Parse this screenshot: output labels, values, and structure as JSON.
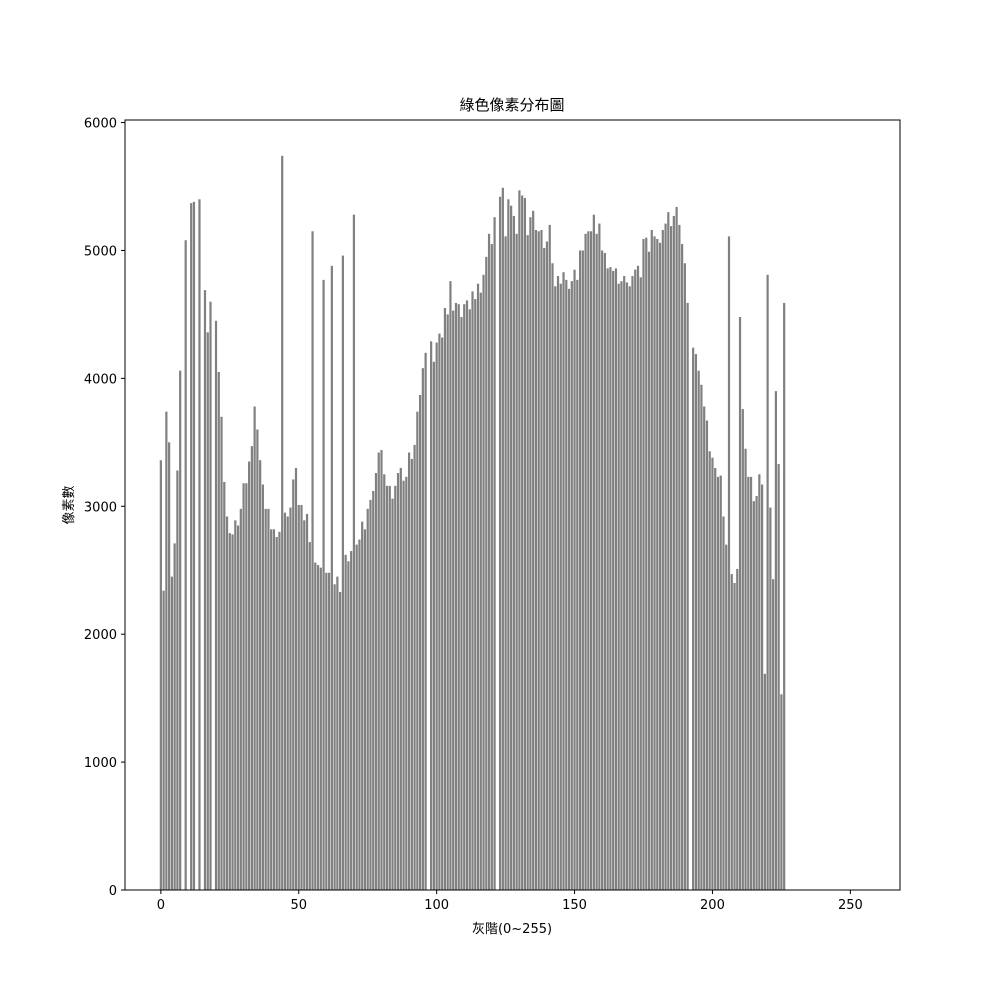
{
  "chart_data": {
    "type": "bar",
    "title": "綠色像素分布圖",
    "xlabel": "灰階(0~255)",
    "ylabel": "像素數",
    "xlim": [
      -13,
      268
    ],
    "ylim": [
      0,
      6020
    ],
    "xticks": [
      0,
      50,
      100,
      150,
      200,
      250
    ],
    "yticks": [
      0,
      1000,
      2000,
      3000,
      4000,
      5000,
      6000
    ],
    "grid": false,
    "bar_color": "#808080",
    "x_start": 0,
    "values": [
      3360,
      2340,
      3740,
      3500,
      2450,
      2710,
      3280,
      4060,
      0,
      5080,
      0,
      5370,
      5380,
      0,
      5400,
      0,
      4690,
      4360,
      4600,
      0,
      4450,
      4050,
      3700,
      3190,
      2920,
      2790,
      2780,
      2890,
      2850,
      2980,
      3180,
      3180,
      3350,
      3470,
      3780,
      3600,
      3360,
      3170,
      2980,
      2980,
      2820,
      2820,
      2760,
      2800,
      5740,
      2950,
      2920,
      2990,
      3210,
      3300,
      3010,
      3010,
      2890,
      2940,
      2720,
      5150,
      2560,
      2540,
      2520,
      4770,
      2480,
      2480,
      4880,
      2390,
      2450,
      2330,
      4960,
      2620,
      2570,
      2650,
      5280,
      2700,
      2740,
      2880,
      2820,
      2980,
      3050,
      3120,
      3260,
      3420,
      3440,
      3250,
      3160,
      3160,
      3060,
      3160,
      3260,
      3300,
      3200,
      3230,
      3420,
      3370,
      3480,
      3740,
      3870,
      4080,
      4200,
      0,
      4290,
      4130,
      4280,
      4350,
      4320,
      4550,
      4500,
      4760,
      4530,
      4590,
      4580,
      4480,
      4580,
      4610,
      4540,
      4680,
      4620,
      4740,
      4670,
      4810,
      4950,
      5130,
      5050,
      5260,
      0,
      5420,
      5490,
      5110,
      5400,
      5350,
      5270,
      5130,
      5470,
      5430,
      5410,
      5120,
      5260,
      5310,
      5160,
      5150,
      5160,
      5020,
      5070,
      5200,
      4900,
      4720,
      4800,
      4740,
      4830,
      4770,
      4700,
      4760,
      4850,
      4770,
      5000,
      5000,
      5130,
      5150,
      5150,
      5280,
      5130,
      5210,
      5000,
      4980,
      4860,
      4870,
      4840,
      4860,
      4740,
      4760,
      4800,
      4750,
      4720,
      4800,
      4850,
      4880,
      4790,
      5090,
      5100,
      4990,
      5160,
      5110,
      5090,
      5060,
      5160,
      5210,
      5300,
      5190,
      5270,
      5340,
      5200,
      5050,
      4900,
      4590,
      0,
      4240,
      4190,
      4060,
      3950,
      3780,
      3670,
      3430,
      3380,
      3300,
      3230,
      3240,
      2920,
      2700,
      5110,
      2470,
      2400,
      2510,
      4480,
      3760,
      3450,
      3230,
      3230,
      3040,
      3080,
      3250,
      3170,
      1690,
      4810,
      2990,
      2430,
      3900,
      3330,
      1530,
      4590
    ]
  }
}
